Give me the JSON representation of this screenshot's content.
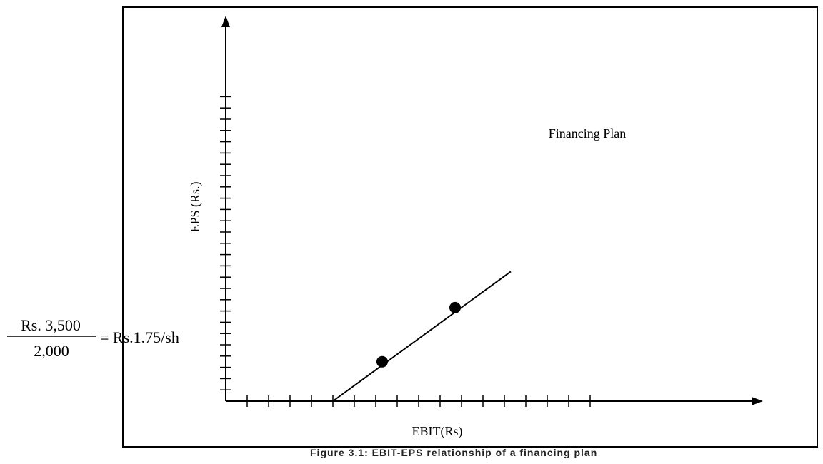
{
  "chart_data": {
    "type": "line",
    "title": "",
    "xlabel": "EBIT(Rs)",
    "ylabel": "EPS (Rs.)",
    "series": [
      {
        "name": "Financing Plan",
        "line": {
          "x": [
            5,
            13.3
          ],
          "y": [
            0,
            11.5
          ]
        },
        "points": [
          {
            "x": 7.3,
            "y": 3.5
          },
          {
            "x": 10.7,
            "y": 8.3
          }
        ]
      }
    ],
    "xlim": [
      0,
      26.5
    ],
    "ylim": [
      0,
      31.5
    ],
    "x_ticks": 17,
    "y_ticks": 27,
    "grid": false,
    "annotation": {
      "numerator": "Rs. 3,500",
      "denominator": "2,000",
      "result": "= Rs.1.75/sh"
    }
  },
  "caption": "Figure 3.1: EBIT-EPS relationship of a financing plan"
}
